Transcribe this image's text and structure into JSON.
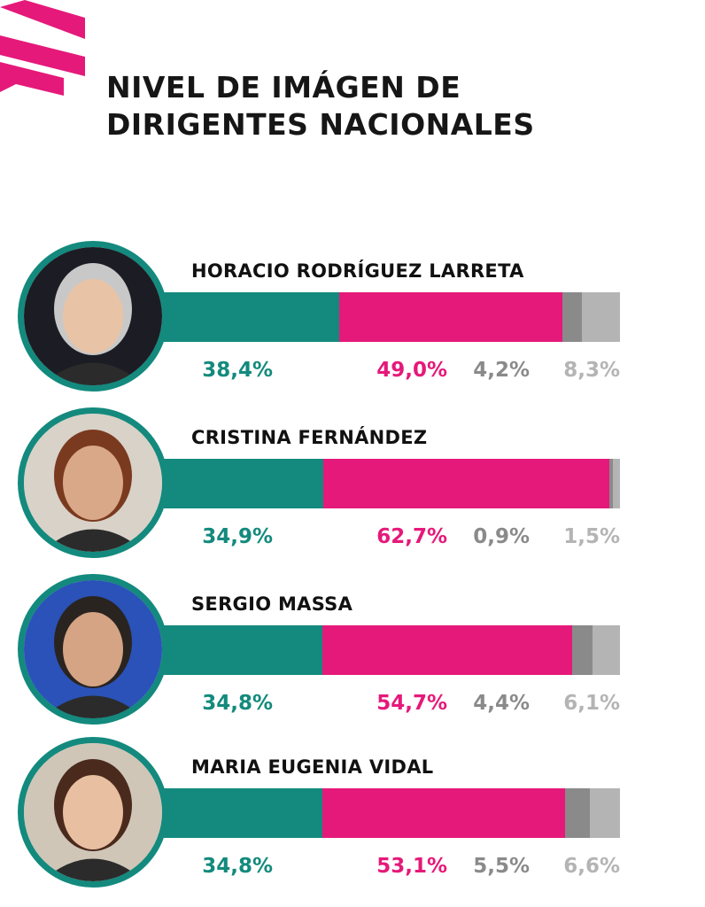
{
  "title": {
    "line1": "NIVEL DE IMÁGEN DE",
    "line2": "DIRIGENTES NACIONALES"
  },
  "colors": {
    "green": "#138a7d",
    "pink": "#e5197a",
    "dark_gray": "#8a8a8a",
    "light_gray": "#b4b4b4"
  },
  "icons": {
    "logo": "pink-stripes-logo",
    "avatars": [
      "person-photo-avatar"
    ]
  },
  "chart_data": {
    "type": "bar",
    "stacked": true,
    "orientation": "horizontal",
    "title": "NIVEL DE IMÁGEN DE DIRIGENTES NACIONALES",
    "categories": [
      "HORACIO RODRÍGUEZ LARRETA",
      "CRISTINA FERNÁNDEZ",
      "SERGIO MASSA",
      "MARIA EUGENIA VIDAL"
    ],
    "series": [
      {
        "values": [
          38.4,
          34.9,
          34.8,
          34.8
        ],
        "labels": [
          "38,4%",
          "34,9%",
          "34,8%",
          "34,8%"
        ],
        "color": "#138a7d"
      },
      {
        "values": [
          49.0,
          62.7,
          54.7,
          53.1
        ],
        "labels": [
          "49,0%",
          "62,7%",
          "54,7%",
          "53,1%"
        ],
        "color": "#e5197a"
      },
      {
        "values": [
          4.2,
          0.9,
          4.4,
          5.5
        ],
        "labels": [
          "4,2%",
          "0,9%",
          "4,4%",
          "5,5%"
        ],
        "color": "#8a8a8a"
      },
      {
        "values": [
          8.3,
          1.5,
          6.1,
          6.6
        ],
        "labels": [
          "8,3%",
          "1,5%",
          "6,1%",
          "6,6%"
        ],
        "color": "#b4b4b4"
      }
    ]
  }
}
